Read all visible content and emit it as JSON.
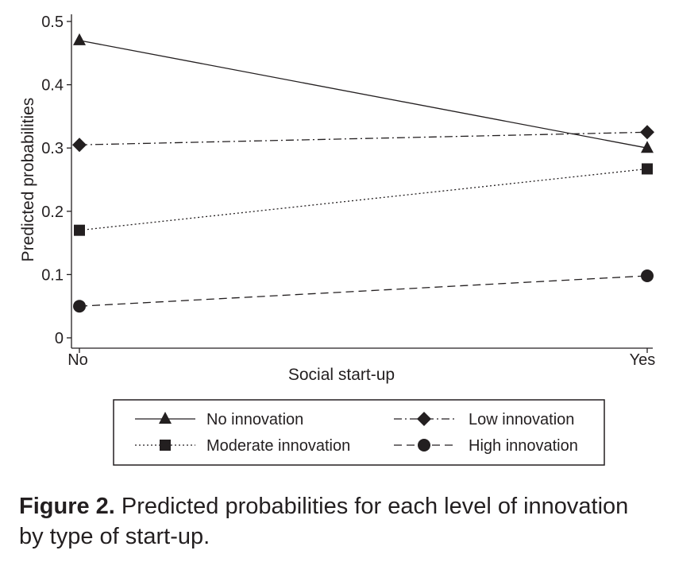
{
  "chart_data": {
    "type": "line",
    "categories": [
      "No",
      "Yes"
    ],
    "xlabel": "Social start-up",
    "ylabel": "Predicted probabilities",
    "ylim": [
      0,
      0.5
    ],
    "yticks": [
      "0",
      "0.1",
      "0.2",
      "0.3",
      "0.4",
      "0.5"
    ],
    "grid": false,
    "legend_position": "bottom",
    "series": [
      {
        "name": "No innovation",
        "values": [
          0.47,
          0.3
        ],
        "marker": "triangle",
        "line_style": "solid"
      },
      {
        "name": "Low innovation",
        "values": [
          0.305,
          0.325
        ],
        "marker": "diamond",
        "line_style": "dash-dot"
      },
      {
        "name": "Moderate innovation",
        "values": [
          0.17,
          0.267
        ],
        "marker": "square",
        "line_style": "dotted"
      },
      {
        "name": "High innovation",
        "values": [
          0.05,
          0.098
        ],
        "marker": "circle",
        "line_style": "dashed"
      }
    ],
    "color": "#231f20"
  },
  "caption": {
    "label": "Figure 2.",
    "text": "Predicted probabilities for each level of innovation by type of start-up."
  }
}
